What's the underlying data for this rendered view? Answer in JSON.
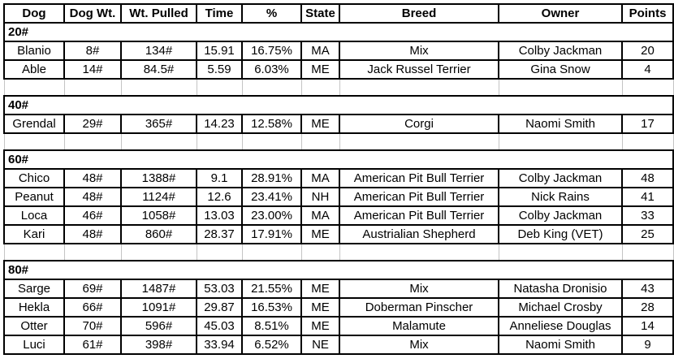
{
  "table": {
    "columns": [
      "Dog",
      "Dog Wt.",
      "Wt. Pulled",
      "Time",
      "%",
      "State",
      "Breed",
      "Owner",
      "Points"
    ],
    "sections": [
      {
        "weight_class": "20#",
        "rows": [
          {
            "dog": "Blanio",
            "dog_wt": "8#",
            "wt_pulled": "134#",
            "time": "15.91",
            "pct": "16.75%",
            "state": "MA",
            "breed": "Mix",
            "owner": "Colby Jackman",
            "points": "20"
          },
          {
            "dog": "Able",
            "dog_wt": "14#",
            "wt_pulled": "84.5#",
            "time": "5.59",
            "pct": "6.03%",
            "state": "ME",
            "breed": "Jack Russel Terrier",
            "owner": "Gina Snow",
            "points": "4"
          }
        ]
      },
      {
        "weight_class": "40#",
        "rows": [
          {
            "dog": "Grendal",
            "dog_wt": "29#",
            "wt_pulled": "365#",
            "time": "14.23",
            "pct": "12.58%",
            "state": "ME",
            "breed": "Corgi",
            "owner": "Naomi Smith",
            "points": "17"
          }
        ]
      },
      {
        "weight_class": "60#",
        "rows": [
          {
            "dog": "Chico",
            "dog_wt": "48#",
            "wt_pulled": "1388#",
            "time": "9.1",
            "pct": "28.91%",
            "state": "MA",
            "breed": "American Pit Bull Terrier",
            "owner": "Colby Jackman",
            "points": "48"
          },
          {
            "dog": "Peanut",
            "dog_wt": "48#",
            "wt_pulled": "1124#",
            "time": "12.6",
            "pct": "23.41%",
            "state": "NH",
            "breed": "American Pit Bull Terrier",
            "owner": "Nick Rains",
            "points": "41"
          },
          {
            "dog": "Loca",
            "dog_wt": "46#",
            "wt_pulled": "1058#",
            "time": "13.03",
            "pct": "23.00%",
            "state": "MA",
            "breed": "American Pit Bull Terrier",
            "owner": "Colby Jackman",
            "points": "33"
          },
          {
            "dog": "Kari",
            "dog_wt": "48#",
            "wt_pulled": "860#",
            "time": "28.37",
            "pct": "17.91%",
            "state": "ME",
            "breed": "Austrialian Shepherd",
            "owner": "Deb King (VET)",
            "points": "25"
          }
        ]
      },
      {
        "weight_class": "80#",
        "rows": [
          {
            "dog": "Sarge",
            "dog_wt": "69#",
            "wt_pulled": "1487#",
            "time": "53.03",
            "pct": "21.55%",
            "state": "ME",
            "breed": "Mix",
            "owner": "Natasha Dronisio",
            "points": "43"
          },
          {
            "dog": "Hekla",
            "dog_wt": "66#",
            "wt_pulled": "1091#",
            "time": "29.87",
            "pct": "16.53%",
            "state": "ME",
            "breed": "Doberman Pinscher",
            "owner": "Michael Crosby",
            "points": "28"
          },
          {
            "dog": "Otter",
            "dog_wt": "70#",
            "wt_pulled": "596#",
            "time": "45.03",
            "pct": "8.51%",
            "state": "ME",
            "breed": "Malamute",
            "owner": "Anneliese Douglas",
            "points": "14"
          },
          {
            "dog": "Luci",
            "dog_wt": "61#",
            "wt_pulled": "398#",
            "time": "33.94",
            "pct": "6.52%",
            "state": "NE",
            "breed": "Mix",
            "owner": "Naomi Smith",
            "points": "9"
          }
        ]
      }
    ]
  },
  "colors": {
    "text": "#000000",
    "cell_border": "#000000",
    "gridline": "#c4c4c4",
    "background": "#ffffff"
  }
}
